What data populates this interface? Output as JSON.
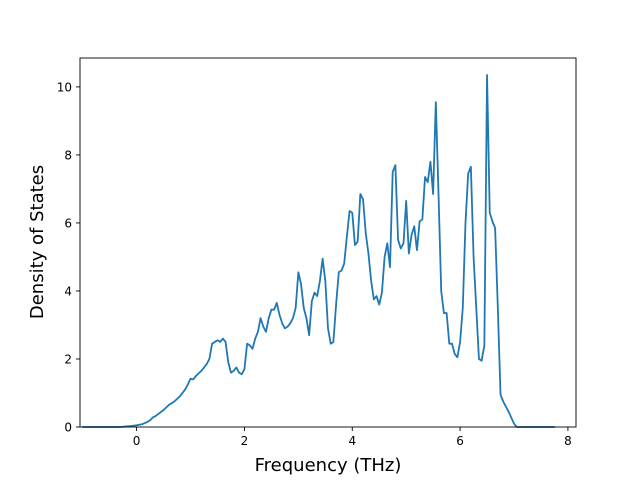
{
  "chart_data": {
    "type": "line",
    "title": "",
    "xlabel": "Frequency (THz)",
    "ylabel": "Density of States",
    "xlim": [
      -1.05,
      8.15
    ],
    "ylim": [
      0,
      10.85
    ],
    "xticks": [
      0,
      2,
      4,
      6,
      8
    ],
    "yticks": [
      0,
      2,
      4,
      6,
      8,
      10
    ],
    "grid": false,
    "legend": "none",
    "series": [
      {
        "color": "#1f77b4",
        "x": [
          -1.0,
          -0.6,
          -0.3,
          -0.1,
          0.0,
          0.1,
          0.2,
          0.25,
          0.3,
          0.35,
          0.4,
          0.5,
          0.6,
          0.7,
          0.8,
          0.9,
          0.95,
          1.0,
          1.05,
          1.1,
          1.2,
          1.3,
          1.35,
          1.4,
          1.45,
          1.5,
          1.55,
          1.6,
          1.65,
          1.7,
          1.75,
          1.8,
          1.85,
          1.9,
          1.95,
          2.0,
          2.05,
          2.1,
          2.15,
          2.2,
          2.25,
          2.3,
          2.35,
          2.4,
          2.45,
          2.5,
          2.55,
          2.6,
          2.65,
          2.7,
          2.75,
          2.8,
          2.85,
          2.9,
          2.95,
          3.0,
          3.05,
          3.1,
          3.15,
          3.2,
          3.25,
          3.3,
          3.35,
          3.4,
          3.45,
          3.5,
          3.55,
          3.6,
          3.65,
          3.7,
          3.75,
          3.8,
          3.85,
          3.9,
          3.95,
          4.0,
          4.05,
          4.1,
          4.15,
          4.2,
          4.25,
          4.3,
          4.35,
          4.4,
          4.45,
          4.5,
          4.55,
          4.6,
          4.65,
          4.7,
          4.75,
          4.8,
          4.85,
          4.9,
          4.95,
          5.0,
          5.05,
          5.1,
          5.15,
          5.2,
          5.25,
          5.3,
          5.35,
          5.4,
          5.45,
          5.5,
          5.55,
          5.6,
          5.65,
          5.7,
          5.75,
          5.8,
          5.85,
          5.9,
          5.95,
          6.0,
          6.05,
          6.1,
          6.15,
          6.2,
          6.25,
          6.3,
          6.35,
          6.4,
          6.45,
          6.5,
          6.55,
          6.6,
          6.65,
          6.7,
          6.75,
          6.8,
          6.9,
          7.0,
          7.05,
          7.1,
          7.5,
          7.75
        ],
        "y": [
          0.0,
          0.0,
          0.0,
          0.03,
          0.05,
          0.08,
          0.15,
          0.2,
          0.28,
          0.32,
          0.38,
          0.5,
          0.65,
          0.75,
          0.9,
          1.1,
          1.25,
          1.42,
          1.4,
          1.5,
          1.65,
          1.85,
          2.0,
          2.45,
          2.5,
          2.55,
          2.5,
          2.6,
          2.5,
          1.9,
          1.6,
          1.65,
          1.75,
          1.6,
          1.55,
          1.7,
          2.45,
          2.4,
          2.3,
          2.6,
          2.8,
          3.2,
          2.95,
          2.8,
          3.2,
          3.45,
          3.45,
          3.65,
          3.3,
          3.05,
          2.9,
          2.95,
          3.05,
          3.2,
          3.5,
          4.55,
          4.2,
          3.5,
          3.2,
          2.7,
          3.7,
          3.95,
          3.85,
          4.3,
          4.95,
          4.3,
          2.9,
          2.45,
          2.5,
          3.6,
          4.55,
          4.6,
          4.8,
          5.6,
          6.35,
          6.3,
          5.35,
          5.45,
          6.85,
          6.7,
          5.7,
          5.1,
          4.3,
          3.75,
          3.85,
          3.6,
          3.95,
          5.0,
          5.4,
          4.7,
          7.5,
          7.7,
          5.5,
          5.25,
          5.4,
          6.65,
          5.1,
          5.65,
          5.9,
          5.2,
          6.05,
          6.1,
          7.35,
          7.2,
          7.8,
          6.85,
          9.55,
          6.85,
          4.0,
          3.35,
          3.35,
          2.45,
          2.45,
          2.15,
          2.05,
          2.5,
          3.5,
          6.0,
          7.45,
          7.65,
          5.0,
          3.5,
          2.0,
          1.95,
          2.4,
          10.35,
          6.3,
          6.05,
          5.85,
          3.5,
          0.95,
          0.75,
          0.45,
          0.1,
          0.0,
          0.0,
          0.0,
          0.0
        ]
      }
    ]
  }
}
